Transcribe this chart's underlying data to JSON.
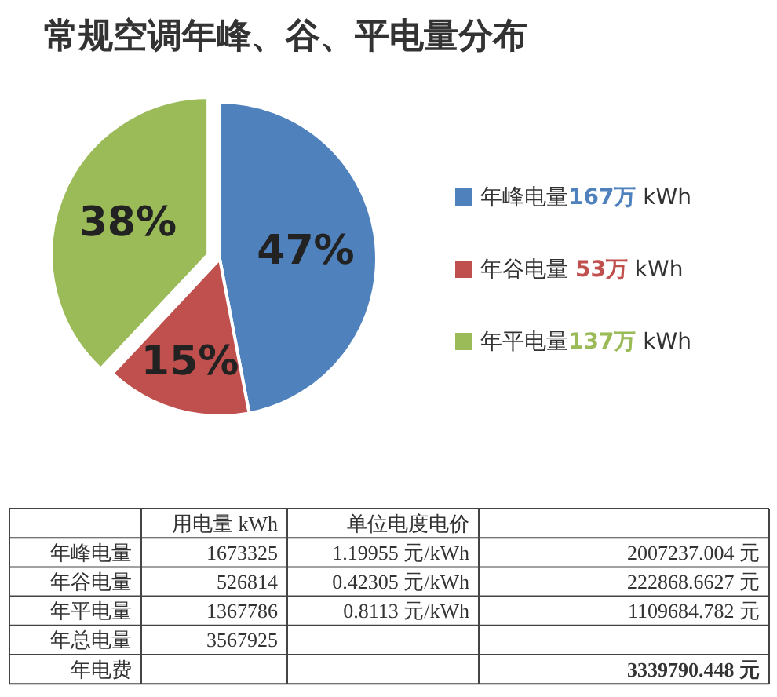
{
  "chart_data": {
    "type": "pie",
    "title": "常规空调年峰、谷、平电量分布",
    "categories": [
      "年峰电量167万 kWh",
      "年谷电量 53万 kWh",
      "年平电量137万 kWh"
    ],
    "values": [
      47,
      15,
      38
    ],
    "colors": [
      "#4f81bd",
      "#c0504d",
      "#9bbb59"
    ],
    "value_labels": [
      "47%",
      "15%",
      "38%"
    ],
    "legend": "right",
    "annotations": [
      null,
      "用电量 kWh",
      "单位电度电价",
      null,
      "年峰电量",
      "1673325",
      "1.19955 元/kWh",
      "2007237.004 元",
      "年谷电量",
      "526814",
      "0.42305 元/kWh",
      "222868.6627 元",
      "年平电量",
      "1367786",
      "0.8113 元/kWh",
      "1109684.782 元",
      "年总电量",
      "3567925",
      null,
      null,
      "年电费",
      null,
      null,
      "3339790.448 元"
    ]
  }
}
